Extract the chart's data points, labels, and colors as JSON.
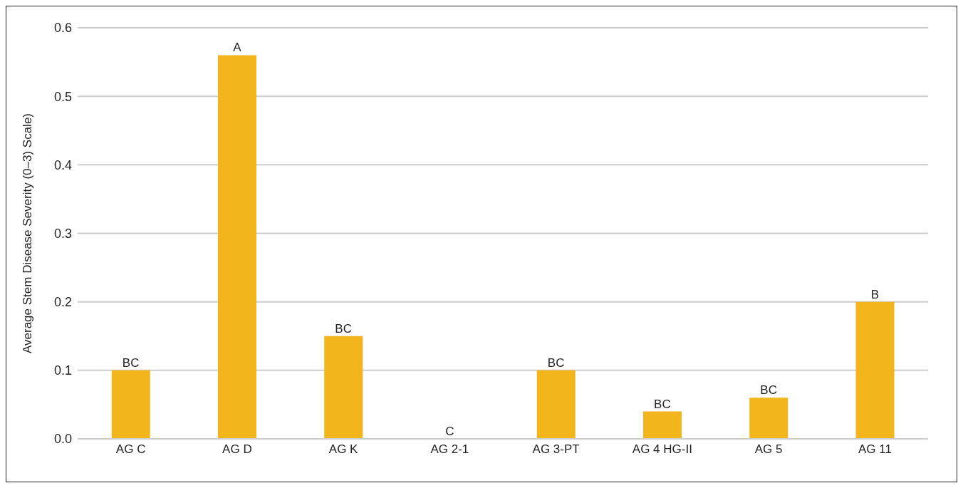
{
  "chart_data": {
    "type": "bar",
    "ylabel": "Average Stem Disease Severity (0–3) Scale)",
    "categories": [
      "AG C",
      "AG D",
      "AG K",
      "AG 2-1",
      "AG 3-PT",
      "AG 4 HG-II",
      "AG 5",
      "AG 11"
    ],
    "values": [
      0.1,
      0.56,
      0.15,
      0,
      0.1,
      0.04,
      0.06,
      0.2
    ],
    "color": "#f2b51c",
    "ylim": [
      0,
      0.6
    ],
    "yticks": [
      {
        "value": 0,
        "label": "0.0"
      },
      0.1,
      0.2,
      0.3,
      0.4,
      0.5,
      0.6
    ],
    "grid": "y",
    "annotations": [
      {
        "text": "BC",
        "x": "AG C",
        "y": 0.1
      },
      {
        "text": "A",
        "x": "AG D",
        "y": 0.56
      },
      {
        "text": "BC",
        "x": "AG K",
        "y": 0.15
      },
      {
        "text": "C",
        "x": "AG 2-1",
        "y": 0
      },
      {
        "text": "BC",
        "x": "AG 3-PT",
        "y": 0.1
      },
      {
        "text": "BC",
        "x": "AG 4 HG-II",
        "y": 0.04
      },
      {
        "text": "BC",
        "x": "AG 5",
        "y": 0.06
      },
      {
        "text": "B",
        "x": "AG 11",
        "y": 0.2
      }
    ]
  }
}
